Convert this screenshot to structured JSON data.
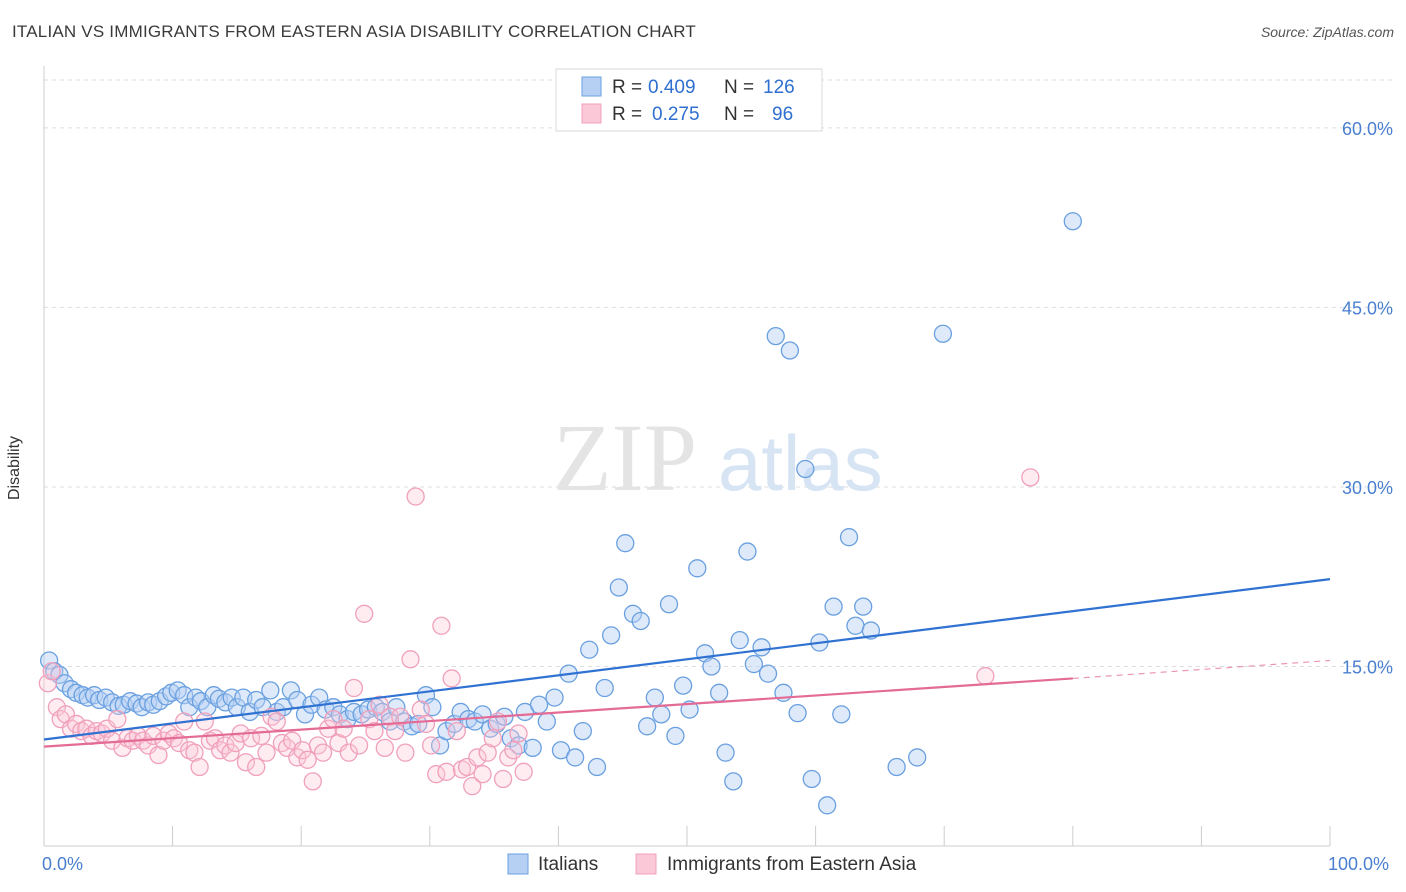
{
  "title": "ITALIAN VS IMMIGRANTS FROM EASTERN ASIA DISABILITY CORRELATION CHART",
  "source": "Source: ZipAtlas.com",
  "watermark": {
    "part1": "ZIP",
    "part2": "atlas"
  },
  "colors": {
    "italians": "#6aa0e0",
    "italians_line": "#2f72d2",
    "eastern_asia": "#f0a0bc",
    "eastern_asia_line": "#e36b96",
    "tick_text": "#4a7fd0",
    "grid": "#dddddd"
  },
  "legend": {
    "rows": [
      {
        "r_label": "R =",
        "r_value": "0.409",
        "n_label": "N =",
        "n_value": "126"
      },
      {
        "r_label": "R =",
        "r_value": "0.275",
        "n_label": "N =",
        "n_value": "96"
      }
    ]
  },
  "chart_data": {
    "type": "scatter",
    "title": "ITALIAN VS IMMIGRANTS FROM EASTERN ASIA DISABILITY CORRELATION CHART",
    "xlabel": "",
    "ylabel": "Disability",
    "xlim": [
      0,
      100
    ],
    "ylim": [
      0,
      64
    ],
    "x_tick_labels": [
      "0.0%",
      "100.0%"
    ],
    "y_ticks": [
      15,
      30,
      45,
      60
    ],
    "y_tick_labels": [
      "15.0%",
      "30.0%",
      "45.0%",
      "60.0%"
    ],
    "grid": true,
    "legend_position": "top-center",
    "series": [
      {
        "name": "Italians",
        "r": 0.409,
        "n": 126,
        "trend": {
          "x": [
            0,
            100
          ],
          "y": [
            8.9,
            22.3
          ],
          "dashed_to": null
        },
        "points": [
          [
            0.4,
            15.5
          ],
          [
            0.8,
            14.6
          ],
          [
            1.2,
            14.3
          ],
          [
            1.6,
            13.6
          ],
          [
            2.1,
            13.1
          ],
          [
            2.5,
            12.8
          ],
          [
            3.0,
            12.6
          ],
          [
            3.4,
            12.4
          ],
          [
            3.9,
            12.6
          ],
          [
            4.3,
            12.2
          ],
          [
            4.8,
            12.4
          ],
          [
            5.3,
            12.0
          ],
          [
            5.8,
            11.7
          ],
          [
            6.2,
            11.8
          ],
          [
            6.7,
            12.1
          ],
          [
            7.2,
            11.9
          ],
          [
            7.6,
            11.6
          ],
          [
            8.1,
            12.0
          ],
          [
            8.5,
            11.8
          ],
          [
            9.0,
            12.1
          ],
          [
            9.5,
            12.5
          ],
          [
            9.9,
            12.8
          ],
          [
            10.4,
            13.0
          ],
          [
            10.9,
            12.6
          ],
          [
            11.3,
            11.6
          ],
          [
            11.8,
            12.4
          ],
          [
            12.2,
            12.1
          ],
          [
            12.7,
            11.6
          ],
          [
            13.2,
            12.6
          ],
          [
            13.6,
            12.3
          ],
          [
            14.1,
            12.0
          ],
          [
            14.6,
            12.4
          ],
          [
            15.0,
            11.6
          ],
          [
            15.5,
            12.4
          ],
          [
            16.0,
            11.2
          ],
          [
            16.5,
            12.2
          ],
          [
            17.0,
            11.6
          ],
          [
            17.6,
            13.0
          ],
          [
            18.1,
            11.2
          ],
          [
            18.6,
            11.6
          ],
          [
            19.2,
            13.0
          ],
          [
            19.7,
            12.2
          ],
          [
            20.3,
            11.0
          ],
          [
            20.8,
            11.8
          ],
          [
            21.4,
            12.4
          ],
          [
            21.9,
            11.4
          ],
          [
            22.5,
            11.6
          ],
          [
            23.0,
            11.0
          ],
          [
            23.6,
            10.6
          ],
          [
            24.1,
            11.2
          ],
          [
            24.7,
            11.0
          ],
          [
            25.2,
            11.4
          ],
          [
            25.8,
            11.6
          ],
          [
            26.3,
            11.2
          ],
          [
            26.9,
            10.4
          ],
          [
            27.4,
            11.6
          ],
          [
            28.0,
            10.4
          ],
          [
            28.6,
            10.0
          ],
          [
            29.1,
            10.2
          ],
          [
            29.7,
            12.6
          ],
          [
            30.2,
            11.6
          ],
          [
            30.8,
            8.4
          ],
          [
            31.3,
            9.6
          ],
          [
            31.9,
            10.2
          ],
          [
            32.4,
            11.2
          ],
          [
            33.0,
            10.6
          ],
          [
            33.5,
            10.4
          ],
          [
            34.1,
            11.0
          ],
          [
            34.7,
            9.8
          ],
          [
            35.2,
            10.2
          ],
          [
            35.8,
            10.8
          ],
          [
            36.3,
            9.0
          ],
          [
            36.9,
            8.4
          ],
          [
            37.4,
            11.2
          ],
          [
            38.0,
            8.2
          ],
          [
            38.5,
            11.8
          ],
          [
            39.1,
            10.4
          ],
          [
            39.7,
            12.4
          ],
          [
            40.2,
            8.0
          ],
          [
            40.8,
            14.4
          ],
          [
            41.3,
            7.4
          ],
          [
            41.9,
            9.6
          ],
          [
            42.4,
            16.4
          ],
          [
            43.0,
            6.6
          ],
          [
            43.6,
            13.2
          ],
          [
            44.1,
            17.6
          ],
          [
            44.7,
            21.6
          ],
          [
            45.2,
            25.3
          ],
          [
            45.8,
            19.4
          ],
          [
            46.4,
            18.8
          ],
          [
            46.9,
            10.0
          ],
          [
            47.5,
            12.4
          ],
          [
            48.0,
            11.0
          ],
          [
            48.6,
            20.2
          ],
          [
            49.1,
            9.2
          ],
          [
            49.7,
            13.4
          ],
          [
            50.2,
            11.4
          ],
          [
            50.8,
            23.2
          ],
          [
            51.4,
            16.1
          ],
          [
            51.9,
            15.0
          ],
          [
            52.5,
            12.8
          ],
          [
            53.0,
            7.8
          ],
          [
            53.6,
            5.4
          ],
          [
            54.1,
            17.2
          ],
          [
            54.7,
            24.6
          ],
          [
            55.2,
            15.2
          ],
          [
            55.8,
            16.6
          ],
          [
            56.3,
            14.4
          ],
          [
            56.9,
            42.6
          ],
          [
            57.5,
            12.8
          ],
          [
            58.0,
            41.4
          ],
          [
            58.6,
            11.1
          ],
          [
            59.2,
            31.5
          ],
          [
            59.7,
            5.6
          ],
          [
            60.3,
            17.0
          ],
          [
            60.9,
            3.4
          ],
          [
            61.4,
            20.0
          ],
          [
            62.0,
            11.0
          ],
          [
            62.6,
            25.8
          ],
          [
            63.1,
            18.4
          ],
          [
            63.7,
            20.0
          ],
          [
            64.3,
            18.0
          ],
          [
            66.3,
            6.6
          ],
          [
            67.9,
            7.4
          ],
          [
            69.9,
            42.8
          ],
          [
            80.0,
            52.2
          ]
        ]
      },
      {
        "name": "Immigrants from Eastern Asia",
        "r": 0.275,
        "n": 96,
        "trend": {
          "x": [
            0,
            80
          ],
          "y": [
            8.3,
            14.0
          ],
          "dashed_to": [
            100,
            15.5
          ]
        },
        "points": [
          [
            0.3,
            13.6
          ],
          [
            0.6,
            14.6
          ],
          [
            1.0,
            11.6
          ],
          [
            1.3,
            10.6
          ],
          [
            1.7,
            11.0
          ],
          [
            2.1,
            9.8
          ],
          [
            2.5,
            10.2
          ],
          [
            2.9,
            9.6
          ],
          [
            3.3,
            9.8
          ],
          [
            3.7,
            9.2
          ],
          [
            4.1,
            9.6
          ],
          [
            4.5,
            9.4
          ],
          [
            4.9,
            9.8
          ],
          [
            5.3,
            8.8
          ],
          [
            5.7,
            10.6
          ],
          [
            6.1,
            8.2
          ],
          [
            6.5,
            9.0
          ],
          [
            6.9,
            8.8
          ],
          [
            7.3,
            9.2
          ],
          [
            7.7,
            8.8
          ],
          [
            8.1,
            8.4
          ],
          [
            8.5,
            9.2
          ],
          [
            8.9,
            7.6
          ],
          [
            9.3,
            8.8
          ],
          [
            9.7,
            9.4
          ],
          [
            10.1,
            9.0
          ],
          [
            10.5,
            8.6
          ],
          [
            10.9,
            10.4
          ],
          [
            11.3,
            8.0
          ],
          [
            11.7,
            7.8
          ],
          [
            12.1,
            6.6
          ],
          [
            12.5,
            10.4
          ],
          [
            12.9,
            8.8
          ],
          [
            13.3,
            9.0
          ],
          [
            13.7,
            8.0
          ],
          [
            14.1,
            8.4
          ],
          [
            14.5,
            7.8
          ],
          [
            14.9,
            8.6
          ],
          [
            15.3,
            9.4
          ],
          [
            15.7,
            7.0
          ],
          [
            16.1,
            9.0
          ],
          [
            16.5,
            6.6
          ],
          [
            16.9,
            9.2
          ],
          [
            17.3,
            7.8
          ],
          [
            17.7,
            10.8
          ],
          [
            18.1,
            10.4
          ],
          [
            18.5,
            8.6
          ],
          [
            18.9,
            8.2
          ],
          [
            19.3,
            8.8
          ],
          [
            19.7,
            7.4
          ],
          [
            20.1,
            8.0
          ],
          [
            20.5,
            7.2
          ],
          [
            20.9,
            5.4
          ],
          [
            21.3,
            8.4
          ],
          [
            21.7,
            7.8
          ],
          [
            22.1,
            9.8
          ],
          [
            22.5,
            10.6
          ],
          [
            22.9,
            8.6
          ],
          [
            23.3,
            9.8
          ],
          [
            23.7,
            7.8
          ],
          [
            24.1,
            13.2
          ],
          [
            24.5,
            8.4
          ],
          [
            24.9,
            19.4
          ],
          [
            25.3,
            10.6
          ],
          [
            25.7,
            9.6
          ],
          [
            26.1,
            11.8
          ],
          [
            26.5,
            8.2
          ],
          [
            26.9,
            10.8
          ],
          [
            27.3,
            9.6
          ],
          [
            27.7,
            10.8
          ],
          [
            28.1,
            7.8
          ],
          [
            28.5,
            15.6
          ],
          [
            28.9,
            29.2
          ],
          [
            29.3,
            11.4
          ],
          [
            29.7,
            10.2
          ],
          [
            30.1,
            8.4
          ],
          [
            30.5,
            6.0
          ],
          [
            30.9,
            18.4
          ],
          [
            31.3,
            6.2
          ],
          [
            31.7,
            14.0
          ],
          [
            32.1,
            9.6
          ],
          [
            32.5,
            6.4
          ],
          [
            32.9,
            6.6
          ],
          [
            33.3,
            5.0
          ],
          [
            33.7,
            7.4
          ],
          [
            34.1,
            6.0
          ],
          [
            34.5,
            7.8
          ],
          [
            34.9,
            9.0
          ],
          [
            35.3,
            10.4
          ],
          [
            35.7,
            5.6
          ],
          [
            36.1,
            7.4
          ],
          [
            36.5,
            8.0
          ],
          [
            36.9,
            9.4
          ],
          [
            37.3,
            6.2
          ],
          [
            73.2,
            14.2
          ],
          [
            76.7,
            30.8
          ]
        ]
      }
    ]
  },
  "bottom_legend": [
    {
      "label": "Italians"
    },
    {
      "label": "Immigrants from Eastern Asia"
    }
  ]
}
